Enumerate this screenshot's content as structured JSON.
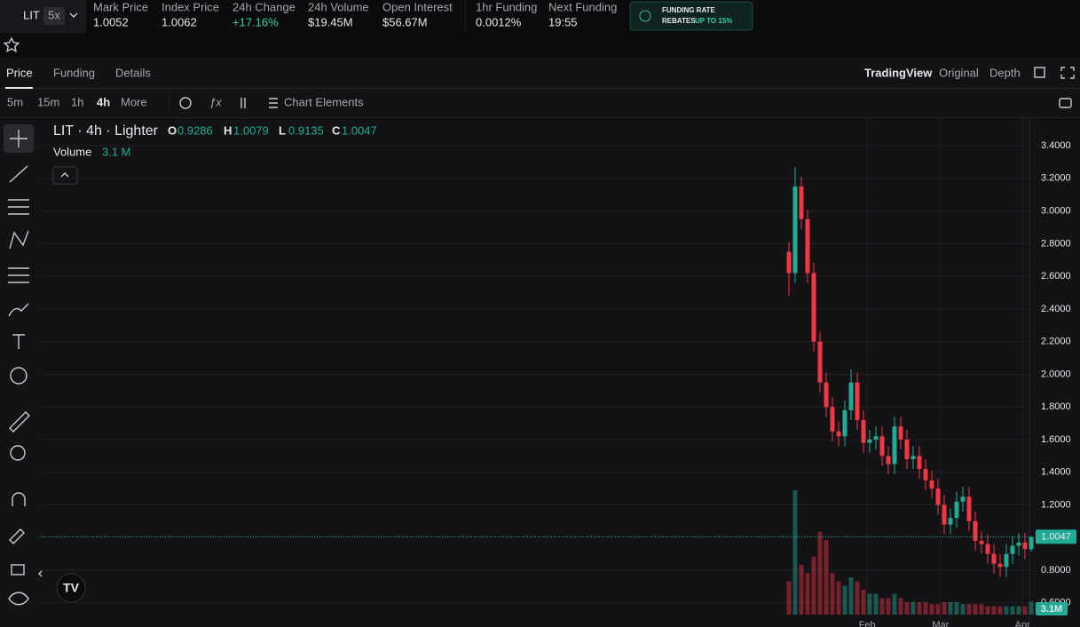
{
  "header": {
    "symbol": "LIT",
    "leverage": "5x",
    "stats": [
      {
        "label": "Mark Price",
        "value": "1.0052"
      },
      {
        "label": "Index Price",
        "value": "1.0062"
      },
      {
        "label": "24h Change",
        "value": "+17.16%"
      },
      {
        "label": "24h Volume",
        "value": "$19.45M"
      },
      {
        "label": "Open Interest",
        "value": "$56.67M"
      },
      {
        "label": "1hr Funding",
        "value": "0.0012%"
      },
      {
        "label": "Next Funding",
        "value": "19:55"
      }
    ],
    "promo": {
      "line1": "FUNDING RATE",
      "line2": "REBATES",
      "highlight": "UP TO 15%"
    }
  },
  "tabs": [
    "Price",
    "Funding",
    "Details"
  ],
  "views": [
    "TradingView",
    "Original",
    "Depth"
  ],
  "toolbar": {
    "intervals": [
      "5m",
      "15m",
      "1h",
      "4h",
      "More"
    ],
    "elements": "Chart Elements"
  },
  "chart_data": {
    "type": "candlestick",
    "title": "LIT · 4h · Lighter",
    "legend": {
      "o": "O",
      "h": "H",
      "l": "L",
      "c": "C",
      "volume": "Volume"
    },
    "up_color": "#22ab94",
    "down_color": "#f23645",
    "open": [
      2.75,
      2.62,
      3.15,
      2.95,
      2.62,
      2.2,
      1.95,
      1.8,
      1.65,
      1.62,
      1.78,
      1.95,
      1.72,
      1.58,
      1.6,
      1.62,
      1.5,
      1.45,
      1.68,
      1.6,
      1.48,
      1.5,
      1.42,
      1.35,
      1.3,
      1.2,
      1.08,
      1.12,
      1.22,
      1.25,
      1.1,
      0.98,
      0.96,
      0.9,
      0.84,
      0.82,
      0.9,
      0.95,
      0.97,
      0.9286
    ],
    "high": [
      2.81,
      3.27,
      3.21,
      3.01,
      2.68,
      2.26,
      2.01,
      1.86,
      1.71,
      1.84,
      2.03,
      2.01,
      1.78,
      1.66,
      1.68,
      1.68,
      1.56,
      1.74,
      1.74,
      1.66,
      1.56,
      1.56,
      1.48,
      1.41,
      1.36,
      1.26,
      1.18,
      1.28,
      1.31,
      1.31,
      1.16,
      1.04,
      1.02,
      0.96,
      0.9,
      0.96,
      1.01,
      1.03,
      1.03,
      1.0079
    ],
    "low": [
      2.48,
      2.56,
      2.89,
      2.56,
      2.14,
      1.89,
      1.74,
      1.59,
      1.56,
      1.56,
      1.72,
      1.66,
      1.52,
      1.52,
      1.54,
      1.44,
      1.39,
      1.39,
      1.54,
      1.42,
      1.42,
      1.36,
      1.29,
      1.24,
      1.14,
      1.02,
      1.02,
      1.06,
      1.16,
      1.04,
      0.92,
      0.9,
      0.84,
      0.78,
      0.76,
      0.76,
      0.84,
      0.89,
      0.87,
      0.9135
    ],
    "close": [
      2.62,
      3.15,
      2.95,
      2.62,
      2.2,
      1.95,
      1.8,
      1.65,
      1.62,
      1.78,
      1.95,
      1.72,
      1.58,
      1.6,
      1.62,
      1.5,
      1.45,
      1.68,
      1.6,
      1.48,
      1.5,
      1.42,
      1.35,
      1.3,
      1.2,
      1.08,
      1.12,
      1.22,
      1.25,
      1.1,
      0.98,
      0.96,
      0.9,
      0.84,
      0.82,
      0.9,
      0.95,
      0.97,
      0.93,
      1.0047
    ],
    "volume": {
      "values": [
        8,
        30,
        12,
        10,
        14,
        20,
        18,
        10,
        8,
        7,
        9,
        8,
        6,
        5,
        5,
        4,
        4,
        5,
        4,
        3,
        3,
        3,
        3,
        2.5,
        2.5,
        3,
        3,
        3,
        2.5,
        2.5,
        2.5,
        2.5,
        2,
        2,
        2,
        2,
        2,
        2,
        2,
        3.1
      ],
      "legend_label": "3.1 M",
      "axis_label": "3.1M"
    },
    "last_label": "1.0047",
    "ylim": [
      0.512,
      3.569
    ],
    "yticks": [
      {
        "value": 0.6,
        "label": "0.6000"
      },
      {
        "value": 0.8,
        "label": "0.8000"
      },
      {
        "value": 1.0,
        "label": "1.0000"
      },
      {
        "value": 1.2,
        "label": "1.2000"
      },
      {
        "value": 1.4,
        "label": "1.4000"
      },
      {
        "value": 1.6,
        "label": "1.6000"
      },
      {
        "value": 1.8,
        "label": "1.8000"
      },
      {
        "value": 2.0,
        "label": "2.0000"
      },
      {
        "value": 2.2,
        "label": "2.2000"
      },
      {
        "value": 2.4,
        "label": "2.4000"
      },
      {
        "value": 2.6,
        "label": "2.6000"
      },
      {
        "value": 2.8,
        "label": "2.8000"
      },
      {
        "value": 3.0,
        "label": "3.0000"
      },
      {
        "value": 3.2,
        "label": "3.2000"
      },
      {
        "value": 3.4,
        "label": "3.4000"
      }
    ],
    "xticks": [
      {
        "value": 12.6,
        "label": "Feb"
      },
      {
        "value": 24.4,
        "label": "Mar"
      },
      {
        "value": 37.6,
        "label": "Apr"
      }
    ],
    "grid": true
  }
}
